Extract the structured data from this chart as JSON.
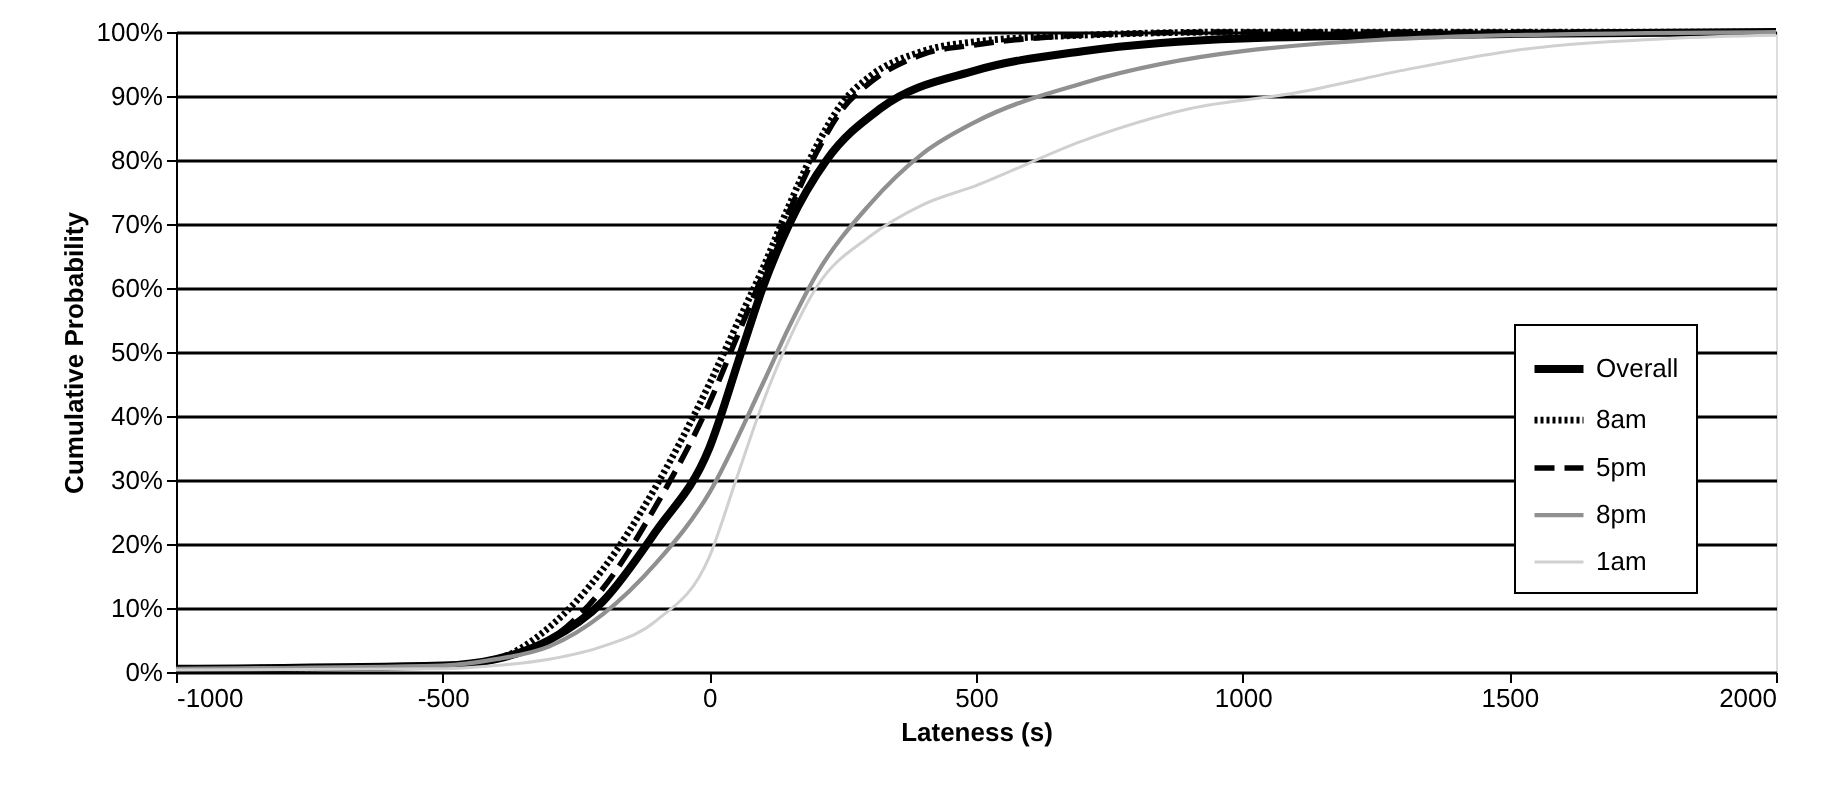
{
  "chart_data": {
    "type": "line",
    "xlabel": "Lateness (s)",
    "ylabel": "Cumulative Probability",
    "xlim": [
      -1000,
      2000
    ],
    "xticks": [
      -1000,
      -500,
      0,
      500,
      1000,
      1500,
      2000
    ],
    "ylim": [
      0,
      100
    ],
    "yticks": [
      {
        "value": 0,
        "label": "0%"
      },
      {
        "value": 10,
        "label": "10%"
      },
      {
        "value": 20,
        "label": "20%"
      },
      {
        "value": 30,
        "label": "30%"
      },
      {
        "value": 40,
        "label": "40%"
      },
      {
        "value": 50,
        "label": "50%"
      },
      {
        "value": 60,
        "label": "60%"
      },
      {
        "value": 70,
        "label": "70%"
      },
      {
        "value": 80,
        "label": "80%"
      },
      {
        "value": 90,
        "label": "90%"
      },
      {
        "value": 100,
        "label": "100%"
      }
    ],
    "grid": "y",
    "legend": "bottom right",
    "marker": "none",
    "series": [
      {
        "name": "Overall",
        "color": "#000000",
        "line_style": "solid",
        "x": [
          -1000,
          -500,
          -400,
          -300,
          -200,
          -100,
          0,
          60,
          100,
          150,
          220,
          320,
          500,
          700,
          1000,
          1500,
          2000
        ],
        "values": [
          0.5,
          1,
          2,
          5,
          11,
          22,
          35,
          50,
          60,
          70,
          80,
          88,
          94,
          97,
          99,
          99.7,
          100
        ]
      },
      {
        "name": "8am",
        "color": "#000000",
        "line_style": "dotted",
        "x": [
          -1000,
          -500,
          -400,
          -300,
          -200,
          -100,
          0,
          50,
          100,
          150,
          200,
          250,
          300,
          400,
          500,
          700,
          1000,
          2000
        ],
        "values": [
          0.5,
          1,
          2,
          7,
          16,
          29,
          45,
          54,
          63,
          73,
          82,
          89,
          93,
          97,
          98.5,
          99.5,
          100,
          100
        ]
      },
      {
        "name": "5pm",
        "color": "#000000",
        "line_style": "dashed",
        "x": [
          -1000,
          -500,
          -400,
          -300,
          -200,
          -100,
          0,
          50,
          100,
          150,
          200,
          250,
          300,
          400,
          500,
          700,
          1000,
          2000
        ],
        "values": [
          0.5,
          1,
          2,
          5,
          13,
          26,
          42,
          52,
          62,
          72,
          81,
          88,
          92,
          96.5,
          98,
          99.5,
          100,
          100
        ]
      },
      {
        "name": "8pm",
        "color": "#909090",
        "line_style": "solid",
        "x": [
          -1000,
          -500,
          -400,
          -300,
          -200,
          -100,
          0,
          100,
          150,
          200,
          300,
          400,
          500,
          700,
          1000,
          1500,
          2000
        ],
        "values": [
          0.5,
          1,
          2,
          4,
          9,
          17,
          28,
          45,
          54,
          62,
          73,
          81,
          86,
          92,
          97,
          99.5,
          100
        ]
      },
      {
        "name": "1am",
        "color": "#d0d0d0",
        "line_style": "solid",
        "x": [
          -1000,
          -500,
          -400,
          -300,
          -200,
          -100,
          0,
          50,
          100,
          150,
          200,
          300,
          400,
          500,
          700,
          900,
          1100,
          1300,
          1500,
          1800,
          2000
        ],
        "values": [
          0.3,
          0.5,
          1,
          2,
          4,
          8,
          18,
          30,
          42,
          52,
          60,
          68,
          73,
          76,
          83,
          88,
          90.5,
          94,
          97,
          99,
          99.5
        ]
      }
    ]
  }
}
